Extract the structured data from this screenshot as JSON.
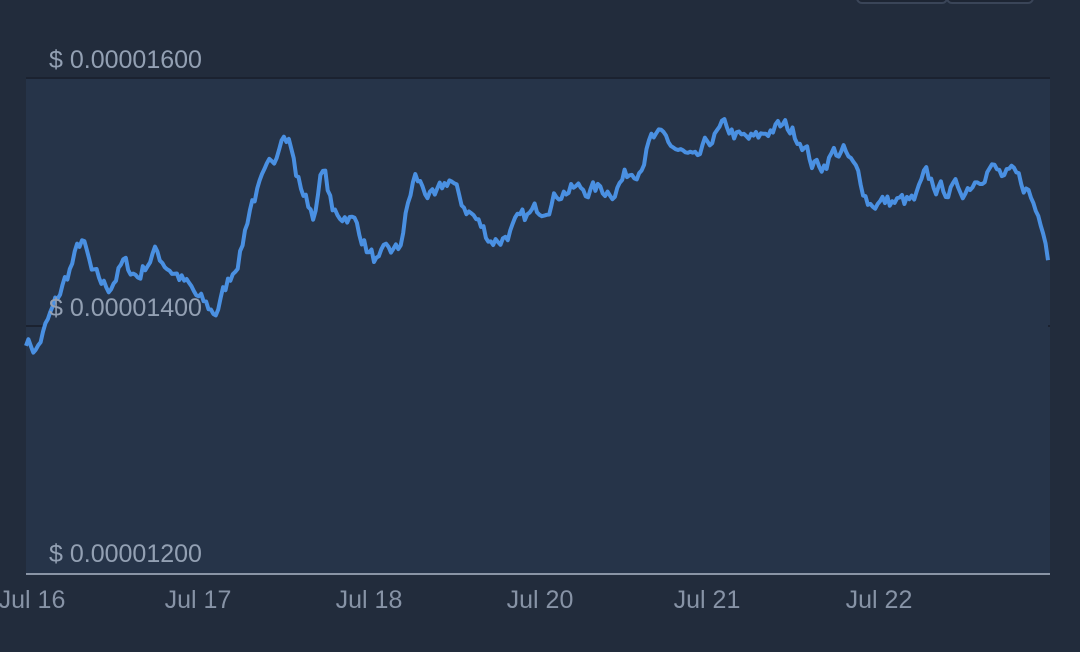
{
  "colors": {
    "background": "#222c3c",
    "plot_area": "#263449",
    "line": "#4a90e2",
    "grid": "#1b2230",
    "axis_text": "#8793a6",
    "y_label_text": "#93a0b3",
    "baseline": "#8a95a6"
  },
  "chart_data": {
    "type": "area",
    "title": "",
    "xlabel": "",
    "ylabel": "",
    "y_ticks": [
      "$ 0.00001600",
      "$ 0.00001400",
      "$ 0.00001200"
    ],
    "y_tick_values": [
      1.6e-05,
      1.4e-05,
      1.2e-05
    ],
    "ylim": [
      1.2e-05,
      1.6e-05
    ],
    "x_ticks": [
      "Jul 16",
      "Jul 17",
      "Jul 18",
      "Jul 20",
      "Jul 21",
      "Jul 22"
    ],
    "grid": true,
    "legend": "none",
    "series": [
      {
        "x": [
          "Jul 16",
          "Jul 17",
          "Jul 18",
          "Jul 20",
          "Jul 21",
          "Jul 22"
        ],
        "values": [
          1.39e-05,
          1.41e-05,
          1.46e-05,
          1.48e-05,
          1.55e-05,
          1.5e-05
        ]
      }
    ]
  }
}
